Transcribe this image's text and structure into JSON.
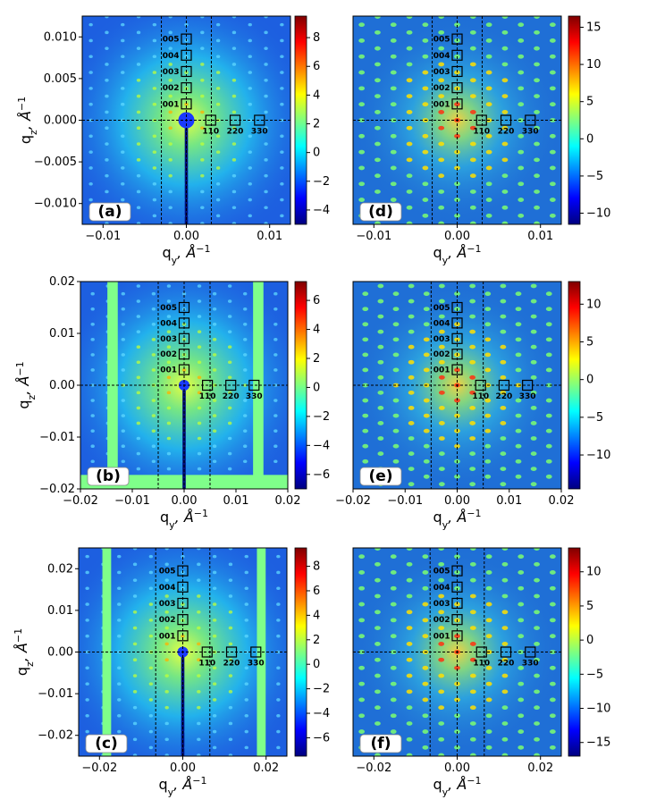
{
  "chart_data": [
    {
      "type": "heatmap",
      "panel_label": "(a)",
      "kind": "measured",
      "xlabel": "q_y, Å^-1",
      "ylabel": "q_z, Å^-1",
      "xlim": [
        -0.0125,
        0.0125
      ],
      "ylim": [
        -0.0125,
        0.0125
      ],
      "xticks": [
        -0.01,
        0.0,
        0.01
      ],
      "xtick_labels": [
        "−0.01",
        "0.00",
        "0.01"
      ],
      "yticks": [
        -0.01,
        -0.005,
        0.0,
        0.005,
        0.01
      ],
      "ytick_labels": [
        "−0.010",
        "−0.005",
        "0.000",
        "0.005",
        "0.010"
      ],
      "colorbar": {
        "min": -5,
        "max": 9.5,
        "ticks": [
          -4,
          -2,
          0,
          2,
          4,
          6,
          8
        ],
        "tick_labels": [
          "−4",
          "−2",
          "0",
          "2",
          "4",
          "6",
          "8"
        ]
      },
      "dashed_vlines": [
        -0.003,
        0.003
      ],
      "peak_step": 0.00195,
      "masks": [],
      "beamstop": true,
      "peaks_00l": [
        "001",
        "002",
        "003",
        "004",
        "005"
      ],
      "peaks_hh0": [
        "110",
        "220",
        "330"
      ]
    },
    {
      "type": "heatmap",
      "panel_label": "(d)",
      "kind": "reconstructed",
      "xlabel": "q_y, Å^-1",
      "ylabel": "",
      "xlim": [
        -0.0125,
        0.0125
      ],
      "ylim": [
        -0.0125,
        0.0125
      ],
      "xticks": [
        -0.01,
        0.0,
        0.01
      ],
      "xtick_labels": [
        "−0.01",
        "0.00",
        "0.01"
      ],
      "yticks": [],
      "ytick_labels": [],
      "colorbar": {
        "min": -11.5,
        "max": 16.5,
        "ticks": [
          -10,
          -5,
          0,
          5,
          10,
          15
        ],
        "tick_labels": [
          "−10",
          "−5",
          "0",
          "5",
          "10",
          "15"
        ]
      },
      "dashed_vlines": [
        -0.003,
        0.003
      ],
      "peak_step": 0.00195,
      "masks": [],
      "beamstop": false,
      "peaks_00l": [
        "001",
        "002",
        "003",
        "004",
        "005"
      ],
      "peaks_hh0": [
        "110",
        "220",
        "330"
      ]
    },
    {
      "type": "heatmap",
      "panel_label": "(b)",
      "kind": "measured",
      "xlabel": "q_y, Å^-1",
      "ylabel": "q_z, Å^-1",
      "xlim": [
        -0.02,
        0.02
      ],
      "ylim": [
        -0.02,
        0.02
      ],
      "xticks": [
        -0.02,
        -0.01,
        0.0,
        0.01,
        0.02
      ],
      "xtick_labels": [
        "−0.02",
        "−0.01",
        "0.00",
        "0.01",
        "0.02"
      ],
      "yticks": [
        -0.02,
        -0.01,
        0.0,
        0.01,
        0.02
      ],
      "ytick_labels": [
        "−0.02",
        "−0.01",
        "0.00",
        "0.01",
        "0.02"
      ],
      "colorbar": {
        "min": -7,
        "max": 7.3,
        "ticks": [
          -6,
          -4,
          -2,
          0,
          2,
          4,
          6
        ],
        "tick_labels": [
          "−6",
          "−4",
          "−2",
          "0",
          "2",
          "4",
          "6"
        ]
      },
      "dashed_vlines": [
        -0.005,
        0.005
      ],
      "peak_step": 0.003,
      "masks": [
        [
          -0.0148,
          -0.0128,
          -0.02,
          0.02
        ],
        [
          0.0133,
          0.0153,
          -0.02,
          0.02
        ],
        [
          -0.02,
          0.02,
          -0.02,
          -0.0173
        ]
      ],
      "beamstop": true,
      "peaks_00l": [
        "001",
        "002",
        "003",
        "004",
        "005"
      ],
      "peaks_hh0": [
        "110",
        "220",
        "330"
      ]
    },
    {
      "type": "heatmap",
      "panel_label": "(e)",
      "kind": "reconstructed",
      "xlabel": "q_y, Å^-1",
      "ylabel": "",
      "xlim": [
        -0.02,
        0.02
      ],
      "ylim": [
        -0.02,
        0.02
      ],
      "xticks": [
        -0.02,
        -0.01,
        0.0,
        0.01,
        0.02
      ],
      "xtick_labels": [
        "−0.02",
        "−0.01",
        "0.00",
        "0.01",
        "0.02"
      ],
      "yticks": [],
      "ytick_labels": [],
      "colorbar": {
        "min": -14.5,
        "max": 13,
        "ticks": [
          -10,
          -5,
          0,
          5,
          10
        ],
        "tick_labels": [
          "−10",
          "−5",
          "0",
          "5",
          "10"
        ]
      },
      "dashed_vlines": [
        -0.005,
        0.005
      ],
      "peak_step": 0.003,
      "masks": [],
      "beamstop": false,
      "peaks_00l": [
        "001",
        "002",
        "003",
        "004",
        "005"
      ],
      "peaks_hh0": [
        "110",
        "220",
        "330"
      ]
    },
    {
      "type": "heatmap",
      "panel_label": "(c)",
      "kind": "measured",
      "xlabel": "q_y, Å^-1",
      "ylabel": "q_z, Å^-1",
      "xlim": [
        -0.025,
        0.025
      ],
      "ylim": [
        -0.025,
        0.025
      ],
      "xticks": [
        -0.02,
        0.0,
        0.02
      ],
      "xtick_labels": [
        "−0.02",
        "0.00",
        "0.02"
      ],
      "yticks": [
        -0.02,
        -0.01,
        0.0,
        0.01,
        0.02
      ],
      "ytick_labels": [
        "−0.02",
        "−0.01",
        "0.00",
        "0.01",
        "0.02"
      ],
      "colorbar": {
        "min": -7.5,
        "max": 9.5,
        "ticks": [
          -6,
          -4,
          -2,
          0,
          2,
          4,
          6,
          8
        ],
        "tick_labels": [
          "−6",
          "−4",
          "−2",
          "0",
          "2",
          "4",
          "6",
          "8"
        ]
      },
      "dashed_vlines": [
        -0.0065,
        0.0065
      ],
      "peak_step": 0.0039,
      "masks": [
        [
          -0.0193,
          -0.0172,
          -0.025,
          0.025
        ],
        [
          0.0178,
          0.0199,
          -0.025,
          0.025
        ]
      ],
      "beamstop": true,
      "peaks_00l": [
        "001",
        "002",
        "003",
        "004",
        "005"
      ],
      "peaks_hh0": [
        "110",
        "220",
        "330"
      ]
    },
    {
      "type": "heatmap",
      "panel_label": "(f)",
      "kind": "reconstructed",
      "xlabel": "q_y, Å^-1",
      "ylabel": "",
      "xlim": [
        -0.025,
        0.025
      ],
      "ylim": [
        -0.025,
        0.025
      ],
      "xticks": [
        -0.02,
        0.0,
        0.02
      ],
      "xtick_labels": [
        "−0.02",
        "0.00",
        "0.02"
      ],
      "yticks": [],
      "ytick_labels": [],
      "colorbar": {
        "min": -17,
        "max": 13.5,
        "ticks": [
          -15,
          -10,
          -5,
          0,
          5,
          10
        ],
        "tick_labels": [
          "−15",
          "−10",
          "−5",
          "0",
          "5",
          "10"
        ]
      },
      "dashed_vlines": [
        -0.0065,
        0.0065
      ],
      "peak_step": 0.0039,
      "masks": [],
      "beamstop": false,
      "peaks_00l": [
        "001",
        "002",
        "003",
        "004",
        "005"
      ],
      "peaks_hh0": [
        "110",
        "220",
        "330"
      ]
    }
  ]
}
